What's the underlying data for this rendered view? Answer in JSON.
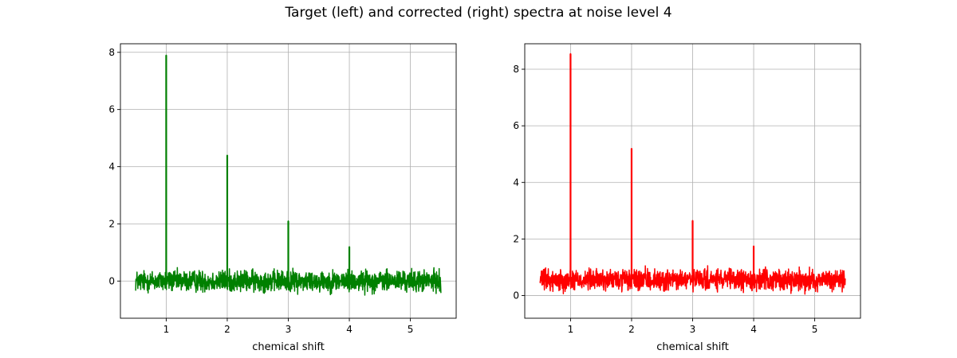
{
  "figure": {
    "title": "Target (left) and corrected (right) spectra at noise level 4"
  },
  "chart_data": [
    {
      "type": "line",
      "name": "target",
      "color": "#008000",
      "title": "",
      "xlabel": "chemical shift",
      "ylabel": "",
      "xlim": [
        0.25,
        5.75
      ],
      "ylim": [
        -1.3,
        8.3
      ],
      "xticks": [
        1,
        2,
        3,
        4,
        5
      ],
      "yticks": [
        0,
        2,
        4,
        6,
        8
      ],
      "grid": true,
      "x_range": [
        0.5,
        5.5
      ],
      "noise_baseline": 0.0,
      "noise_amplitude": 0.55,
      "peaks": [
        {
          "x": 1.0,
          "y": 7.9
        },
        {
          "x": 2.0,
          "y": 4.4
        },
        {
          "x": 3.0,
          "y": 2.1
        },
        {
          "x": 4.0,
          "y": 1.2
        }
      ]
    },
    {
      "type": "line",
      "name": "corrected",
      "color": "#ff0000",
      "title": "",
      "xlabel": "chemical shift",
      "ylabel": "",
      "xlim": [
        0.25,
        5.75
      ],
      "ylim": [
        -0.8,
        8.9
      ],
      "xticks": [
        1,
        2,
        3,
        4,
        5
      ],
      "yticks": [
        0,
        2,
        4,
        6,
        8
      ],
      "grid": true,
      "x_range": [
        0.5,
        5.5
      ],
      "noise_baseline": 0.55,
      "noise_amplitude": 0.55,
      "peaks": [
        {
          "x": 1.0,
          "y": 8.55
        },
        {
          "x": 2.0,
          "y": 5.2
        },
        {
          "x": 3.0,
          "y": 2.65
        },
        {
          "x": 4.0,
          "y": 1.75
        }
      ]
    }
  ]
}
